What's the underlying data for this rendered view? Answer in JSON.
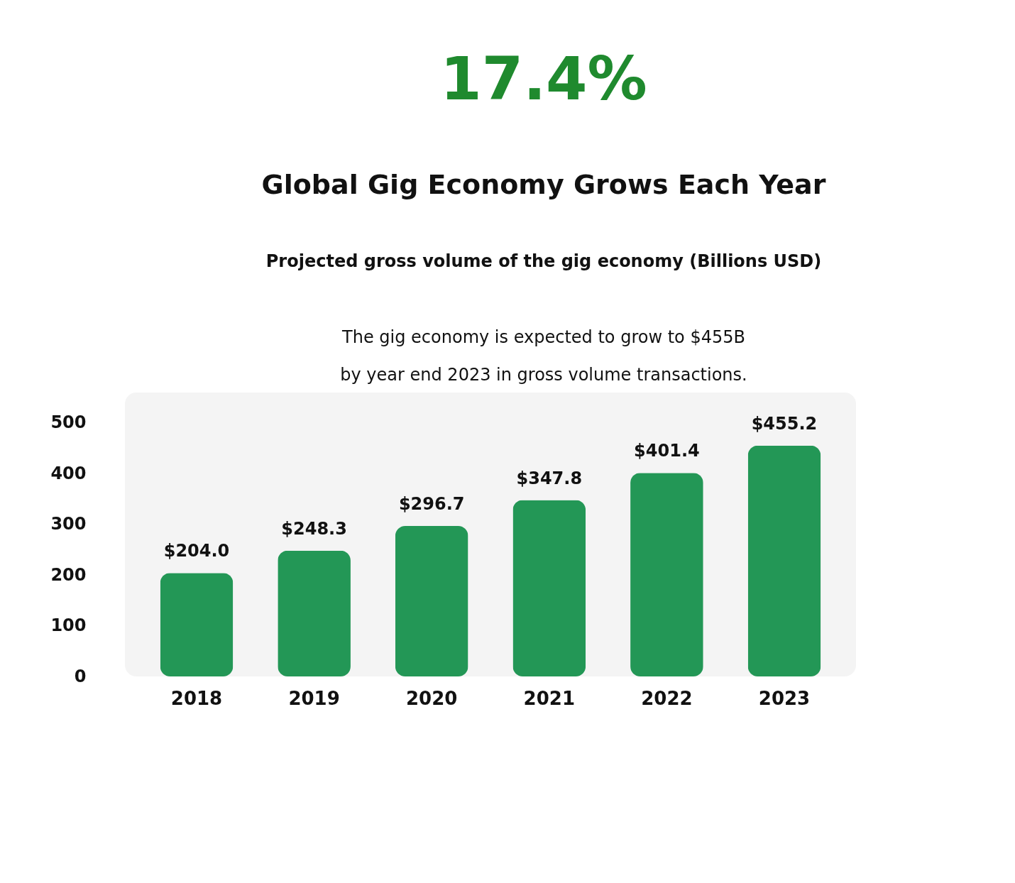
{
  "chart_data": {
    "type": "bar",
    "title": "Global Gig Economy Grows Each Year",
    "subtitle": "Projected gross volume of the gig economy (Billions USD)",
    "annotations": [
      "17.4%",
      "The gig economy is expected to grow to $455B by year end 2023 in gross volume transactions."
    ],
    "categories": [
      "2018",
      "2019",
      "2020",
      "2021",
      "2022",
      "2023"
    ],
    "values": [
      204.0,
      248.3,
      296.7,
      347.8,
      401.4,
      455.2
    ],
    "value_labels": [
      "$204.0",
      "$248.3",
      "$296.7",
      "$347.8",
      "$401.4",
      "$455.2"
    ],
    "color": "#239756",
    "ylim": [
      0,
      560
    ],
    "yticks": [
      0,
      100,
      200,
      300,
      400,
      500
    ],
    "grid": false
  }
}
